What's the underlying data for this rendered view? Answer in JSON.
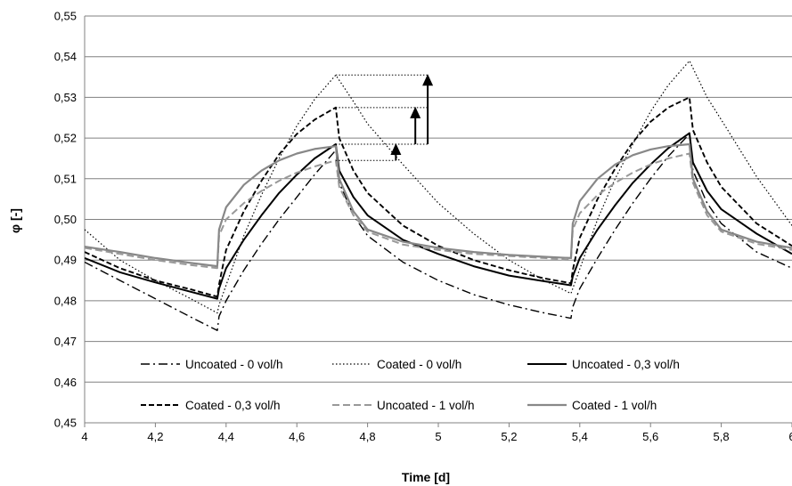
{
  "chart_data": {
    "type": "line",
    "title": "",
    "xlabel": "Time [d]",
    "ylabel": "φ [-]",
    "xlim": [
      4,
      6
    ],
    "ylim": [
      0.45,
      0.55
    ],
    "x_ticks": [
      4,
      4.2,
      4.4,
      4.6,
      4.8,
      5,
      5.2,
      5.4,
      5.6,
      5.8,
      6
    ],
    "x_tick_labels": [
      "4",
      "4,2",
      "4,4",
      "4,6",
      "4,8",
      "5",
      "5,2",
      "5,4",
      "5,6",
      "5,8",
      "6"
    ],
    "y_ticks": [
      0.45,
      0.46,
      0.47,
      0.48,
      0.49,
      0.5,
      0.51,
      0.52,
      0.53,
      0.54,
      0.55
    ],
    "y_tick_labels": [
      "0,45",
      "0,46",
      "0,47",
      "0,48",
      "0,49",
      "0,50",
      "0,51",
      "0,52",
      "0,53",
      "0,54",
      "0,55"
    ],
    "grid": {
      "horizontal": true,
      "vertical": false
    },
    "legend_position": "bottom-inside",
    "series": [
      {
        "name": "Uncoated - 0 vol/h",
        "color": "#000000",
        "width": 1.4,
        "dash": "10,4,2,4",
        "points": [
          [
            4.0,
            0.4895
          ],
          [
            4.1,
            0.485
          ],
          [
            4.2,
            0.4805
          ],
          [
            4.3,
            0.476
          ],
          [
            4.375,
            0.4727
          ],
          [
            4.38,
            0.4762
          ],
          [
            4.4,
            0.48
          ],
          [
            4.45,
            0.4875
          ],
          [
            4.5,
            0.494
          ],
          [
            4.55,
            0.5
          ],
          [
            4.6,
            0.5055
          ],
          [
            4.65,
            0.511
          ],
          [
            4.71,
            0.517
          ],
          [
            4.72,
            0.509
          ],
          [
            4.76,
            0.501
          ],
          [
            4.8,
            0.496
          ],
          [
            4.9,
            0.4895
          ],
          [
            5.0,
            0.485
          ],
          [
            5.1,
            0.4815
          ],
          [
            5.2,
            0.479
          ],
          [
            5.3,
            0.477
          ],
          [
            5.375,
            0.4757
          ],
          [
            5.38,
            0.4785
          ],
          [
            5.4,
            0.483
          ],
          [
            5.45,
            0.4905
          ],
          [
            5.5,
            0.4975
          ],
          [
            5.55,
            0.504
          ],
          [
            5.6,
            0.51
          ],
          [
            5.65,
            0.5155
          ],
          [
            5.71,
            0.521
          ],
          [
            5.72,
            0.512
          ],
          [
            5.76,
            0.504
          ],
          [
            5.8,
            0.499
          ],
          [
            5.9,
            0.492
          ],
          [
            6.0,
            0.488
          ]
        ]
      },
      {
        "name": "Coated - 0 vol/h",
        "color": "#000000",
        "width": 1.2,
        "dash": "1.5,2.5",
        "points": [
          [
            4.0,
            0.4975
          ],
          [
            4.1,
            0.49
          ],
          [
            4.2,
            0.485
          ],
          [
            4.3,
            0.4805
          ],
          [
            4.375,
            0.477
          ],
          [
            4.38,
            0.479
          ],
          [
            4.45,
            0.496
          ],
          [
            4.5,
            0.506
          ],
          [
            4.55,
            0.515
          ],
          [
            4.6,
            0.523
          ],
          [
            4.65,
            0.5295
          ],
          [
            4.71,
            0.5355
          ],
          [
            4.76,
            0.529
          ],
          [
            4.8,
            0.5235
          ],
          [
            4.9,
            0.5135
          ],
          [
            5.0,
            0.504
          ],
          [
            5.1,
            0.4965
          ],
          [
            5.2,
            0.49
          ],
          [
            5.3,
            0.485
          ],
          [
            5.375,
            0.4818
          ],
          [
            5.38,
            0.483
          ],
          [
            5.45,
            0.5
          ],
          [
            5.5,
            0.51
          ],
          [
            5.55,
            0.5185
          ],
          [
            5.6,
            0.5265
          ],
          [
            5.65,
            0.533
          ],
          [
            5.71,
            0.539
          ],
          [
            5.76,
            0.53
          ],
          [
            5.8,
            0.5245
          ],
          [
            5.9,
            0.5105
          ],
          [
            6.0,
            0.4985
          ]
        ]
      },
      {
        "name": "Uncoated - 0,3 vol/h",
        "color": "#000000",
        "width": 2.0,
        "dash": "",
        "points": [
          [
            4.0,
            0.4905
          ],
          [
            4.1,
            0.487
          ],
          [
            4.2,
            0.4845
          ],
          [
            4.3,
            0.4822
          ],
          [
            4.375,
            0.4805
          ],
          [
            4.38,
            0.483
          ],
          [
            4.4,
            0.488
          ],
          [
            4.45,
            0.495
          ],
          [
            4.5,
            0.501
          ],
          [
            4.55,
            0.5065
          ],
          [
            4.6,
            0.511
          ],
          [
            4.65,
            0.515
          ],
          [
            4.71,
            0.5185
          ],
          [
            4.72,
            0.512
          ],
          [
            4.76,
            0.5055
          ],
          [
            4.8,
            0.501
          ],
          [
            4.9,
            0.495
          ],
          [
            5.0,
            0.4915
          ],
          [
            5.1,
            0.4885
          ],
          [
            5.2,
            0.4862
          ],
          [
            5.3,
            0.4848
          ],
          [
            5.375,
            0.4838
          ],
          [
            5.38,
            0.486
          ],
          [
            5.4,
            0.4905
          ],
          [
            5.45,
            0.4975
          ],
          [
            5.5,
            0.5035
          ],
          [
            5.55,
            0.509
          ],
          [
            5.6,
            0.5135
          ],
          [
            5.65,
            0.5175
          ],
          [
            5.71,
            0.5212
          ],
          [
            5.72,
            0.514
          ],
          [
            5.76,
            0.507
          ],
          [
            5.8,
            0.5025
          ],
          [
            5.9,
            0.4965
          ],
          [
            6.0,
            0.4915
          ]
        ]
      },
      {
        "name": "Coated - 0,3 vol/h",
        "color": "#000000",
        "width": 1.9,
        "dash": "6,3",
        "points": [
          [
            4.0,
            0.492
          ],
          [
            4.1,
            0.488
          ],
          [
            4.2,
            0.485
          ],
          [
            4.3,
            0.4828
          ],
          [
            4.375,
            0.481
          ],
          [
            4.38,
            0.484
          ],
          [
            4.4,
            0.4925
          ],
          [
            4.45,
            0.502
          ],
          [
            4.5,
            0.5095
          ],
          [
            4.55,
            0.516
          ],
          [
            4.6,
            0.521
          ],
          [
            4.65,
            0.5245
          ],
          [
            4.71,
            0.5275
          ],
          [
            4.72,
            0.52
          ],
          [
            4.76,
            0.512
          ],
          [
            4.8,
            0.5065
          ],
          [
            4.9,
            0.4985
          ],
          [
            5.0,
            0.4935
          ],
          [
            5.1,
            0.49
          ],
          [
            5.2,
            0.4875
          ],
          [
            5.3,
            0.4855
          ],
          [
            5.375,
            0.4843
          ],
          [
            5.38,
            0.4875
          ],
          [
            5.4,
            0.4955
          ],
          [
            5.45,
            0.505
          ],
          [
            5.5,
            0.5125
          ],
          [
            5.55,
            0.519
          ],
          [
            5.6,
            0.524
          ],
          [
            5.65,
            0.5275
          ],
          [
            5.71,
            0.53
          ],
          [
            5.72,
            0.522
          ],
          [
            5.76,
            0.514
          ],
          [
            5.8,
            0.508
          ],
          [
            5.9,
            0.499
          ],
          [
            6.0,
            0.4935
          ]
        ]
      },
      {
        "name": "Uncoated - 1 vol/h",
        "color": "#999999",
        "width": 2.0,
        "dash": "8,4",
        "points": [
          [
            4.0,
            0.493
          ],
          [
            4.1,
            0.4915
          ],
          [
            4.2,
            0.49
          ],
          [
            4.3,
            0.4888
          ],
          [
            4.375,
            0.488
          ],
          [
            4.38,
            0.496
          ],
          [
            4.4,
            0.5
          ],
          [
            4.45,
            0.504
          ],
          [
            4.5,
            0.507
          ],
          [
            4.55,
            0.5095
          ],
          [
            4.6,
            0.5115
          ],
          [
            4.65,
            0.513
          ],
          [
            4.71,
            0.5145
          ],
          [
            4.72,
            0.508
          ],
          [
            4.76,
            0.501
          ],
          [
            4.8,
            0.497
          ],
          [
            4.9,
            0.4938
          ],
          [
            5.0,
            0.4925
          ],
          [
            5.1,
            0.4915
          ],
          [
            5.2,
            0.491
          ],
          [
            5.3,
            0.4905
          ],
          [
            5.375,
            0.49
          ],
          [
            5.38,
            0.4975
          ],
          [
            5.4,
            0.5015
          ],
          [
            5.45,
            0.506
          ],
          [
            5.5,
            0.509
          ],
          [
            5.55,
            0.5115
          ],
          [
            5.6,
            0.5135
          ],
          [
            5.65,
            0.515
          ],
          [
            5.71,
            0.5162
          ],
          [
            5.72,
            0.509
          ],
          [
            5.76,
            0.501
          ],
          [
            5.8,
            0.497
          ],
          [
            5.9,
            0.494
          ],
          [
            6.0,
            0.4925
          ]
        ]
      },
      {
        "name": "Coated - 1 vol/h",
        "color": "#888888",
        "width": 2.2,
        "dash": "",
        "points": [
          [
            4.0,
            0.4933
          ],
          [
            4.1,
            0.492
          ],
          [
            4.2,
            0.4905
          ],
          [
            4.3,
            0.4893
          ],
          [
            4.375,
            0.4885
          ],
          [
            4.38,
            0.4975
          ],
          [
            4.4,
            0.503
          ],
          [
            4.45,
            0.5085
          ],
          [
            4.5,
            0.512
          ],
          [
            4.55,
            0.5145
          ],
          [
            4.6,
            0.5162
          ],
          [
            4.65,
            0.5173
          ],
          [
            4.71,
            0.518
          ],
          [
            4.72,
            0.51
          ],
          [
            4.76,
            0.502
          ],
          [
            4.8,
            0.4975
          ],
          [
            4.9,
            0.4945
          ],
          [
            5.0,
            0.493
          ],
          [
            5.1,
            0.492
          ],
          [
            5.2,
            0.4913
          ],
          [
            5.3,
            0.4908
          ],
          [
            5.375,
            0.4905
          ],
          [
            5.38,
            0.499
          ],
          [
            5.4,
            0.5045
          ],
          [
            5.45,
            0.51
          ],
          [
            5.5,
            0.5135
          ],
          [
            5.55,
            0.5158
          ],
          [
            5.6,
            0.5172
          ],
          [
            5.65,
            0.518
          ],
          [
            5.71,
            0.5185
          ],
          [
            5.72,
            0.51
          ],
          [
            5.76,
            0.502
          ],
          [
            5.8,
            0.4975
          ],
          [
            5.9,
            0.4945
          ],
          [
            6.0,
            0.493
          ]
        ]
      }
    ],
    "annotations": {
      "reference_lines": [
        {
          "x0": 4.71,
          "x1": 4.97,
          "y": 0.5355
        },
        {
          "x0": 4.71,
          "x1": 4.97,
          "y": 0.5275
        },
        {
          "x0": 4.71,
          "x1": 4.97,
          "y": 0.5185
        },
        {
          "x0": 4.71,
          "x1": 4.88,
          "y": 0.5145
        }
      ],
      "arrows": [
        {
          "x": 4.88,
          "y_from": 0.5145,
          "y_to": 0.5185
        },
        {
          "x": 4.935,
          "y_from": 0.5185,
          "y_to": 0.5275
        },
        {
          "x": 4.97,
          "y_from": 0.5185,
          "y_to": 0.5355
        }
      ]
    }
  }
}
